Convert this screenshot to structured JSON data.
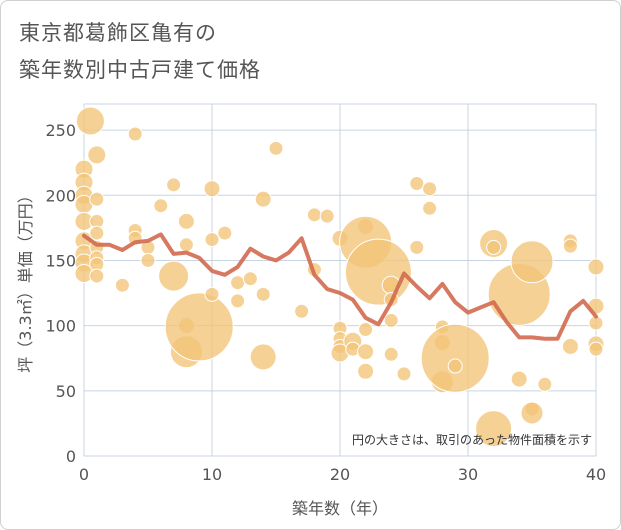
{
  "title_line1": "東京都葛飾区亀有の",
  "title_line2": "築年数別中古戸建て価格",
  "chart_data": {
    "type": "scatter",
    "title": "東京都葛飾区亀有の築年数別中古戸建て価格",
    "xlabel": "築年数（年）",
    "ylabel": "坪（3.3㎡）単価（万円）",
    "xlim": [
      0,
      40
    ],
    "ylim": [
      0,
      270
    ],
    "xticks": [
      0,
      10,
      20,
      30,
      40
    ],
    "yticks": [
      0,
      50,
      100,
      150,
      200,
      250
    ],
    "grid": true,
    "note": "円の大きさは、取引のあった物件面積を示す",
    "colors": {
      "bubble": "#f2c477",
      "line": "#d26a4f",
      "grid": "#c8d4e2"
    },
    "bubbles": [
      {
        "x": 0.5,
        "y": 257,
        "s": 14
      },
      {
        "x": 0,
        "y": 220,
        "s": 9
      },
      {
        "x": 0,
        "y": 210,
        "s": 9
      },
      {
        "x": 0,
        "y": 200,
        "s": 9
      },
      {
        "x": 0,
        "y": 193,
        "s": 9
      },
      {
        "x": 0,
        "y": 180,
        "s": 9
      },
      {
        "x": 0,
        "y": 165,
        "s": 9
      },
      {
        "x": 0,
        "y": 155,
        "s": 9
      },
      {
        "x": 0,
        "y": 148,
        "s": 9
      },
      {
        "x": 0,
        "y": 140,
        "s": 9
      },
      {
        "x": 1,
        "y": 231,
        "s": 9
      },
      {
        "x": 1,
        "y": 197,
        "s": 7
      },
      {
        "x": 1,
        "y": 180,
        "s": 7
      },
      {
        "x": 1,
        "y": 171,
        "s": 7
      },
      {
        "x": 1,
        "y": 160,
        "s": 7
      },
      {
        "x": 1,
        "y": 152,
        "s": 7
      },
      {
        "x": 1,
        "y": 147,
        "s": 7
      },
      {
        "x": 1,
        "y": 138,
        "s": 7
      },
      {
        "x": 3,
        "y": 131,
        "s": 7
      },
      {
        "x": 4,
        "y": 247,
        "s": 7
      },
      {
        "x": 4,
        "y": 173,
        "s": 7
      },
      {
        "x": 4,
        "y": 167,
        "s": 7
      },
      {
        "x": 5,
        "y": 160,
        "s": 7
      },
      {
        "x": 5,
        "y": 150,
        "s": 7
      },
      {
        "x": 6,
        "y": 192,
        "s": 7
      },
      {
        "x": 7,
        "y": 208,
        "s": 7
      },
      {
        "x": 7,
        "y": 138,
        "s": 15
      },
      {
        "x": 8,
        "y": 180,
        "s": 8
      },
      {
        "x": 8,
        "y": 162,
        "s": 7
      },
      {
        "x": 8,
        "y": 100,
        "s": 8
      },
      {
        "x": 8,
        "y": 80,
        "s": 16
      },
      {
        "x": 9,
        "y": 99,
        "s": 34
      },
      {
        "x": 10,
        "y": 205,
        "s": 8
      },
      {
        "x": 10,
        "y": 166,
        "s": 7
      },
      {
        "x": 10,
        "y": 124,
        "s": 7
      },
      {
        "x": 11,
        "y": 171,
        "s": 7
      },
      {
        "x": 12,
        "y": 133,
        "s": 7
      },
      {
        "x": 12,
        "y": 119,
        "s": 7
      },
      {
        "x": 13,
        "y": 136,
        "s": 7
      },
      {
        "x": 14,
        "y": 197,
        "s": 8
      },
      {
        "x": 14,
        "y": 124,
        "s": 7
      },
      {
        "x": 14,
        "y": 76,
        "s": 13
      },
      {
        "x": 15,
        "y": 236,
        "s": 7
      },
      {
        "x": 17,
        "y": 111,
        "s": 7
      },
      {
        "x": 18,
        "y": 185,
        "s": 7
      },
      {
        "x": 18,
        "y": 143,
        "s": 7
      },
      {
        "x": 19,
        "y": 184,
        "s": 7
      },
      {
        "x": 20,
        "y": 167,
        "s": 8
      },
      {
        "x": 20,
        "y": 98,
        "s": 7
      },
      {
        "x": 20,
        "y": 90,
        "s": 7
      },
      {
        "x": 20,
        "y": 84,
        "s": 7
      },
      {
        "x": 20,
        "y": 79,
        "s": 9
      },
      {
        "x": 21,
        "y": 88,
        "s": 9
      },
      {
        "x": 21,
        "y": 82,
        "s": 7
      },
      {
        "x": 22,
        "y": 176,
        "s": 8
      },
      {
        "x": 22,
        "y": 164,
        "s": 26
      },
      {
        "x": 22,
        "y": 97,
        "s": 7
      },
      {
        "x": 22,
        "y": 80,
        "s": 8
      },
      {
        "x": 22,
        "y": 65,
        "s": 8
      },
      {
        "x": 23,
        "y": 141,
        "s": 33
      },
      {
        "x": 24,
        "y": 131,
        "s": 9
      },
      {
        "x": 24,
        "y": 120,
        "s": 7
      },
      {
        "x": 24,
        "y": 104,
        "s": 7
      },
      {
        "x": 24,
        "y": 78,
        "s": 7
      },
      {
        "x": 25,
        "y": 63,
        "s": 7
      },
      {
        "x": 26,
        "y": 160,
        "s": 7
      },
      {
        "x": 26,
        "y": 209,
        "s": 7
      },
      {
        "x": 27,
        "y": 205,
        "s": 7
      },
      {
        "x": 27,
        "y": 190,
        "s": 7
      },
      {
        "x": 28,
        "y": 99,
        "s": 7
      },
      {
        "x": 28,
        "y": 87,
        "s": 8
      },
      {
        "x": 28,
        "y": 57,
        "s": 11
      },
      {
        "x": 29,
        "y": 75,
        "s": 34
      },
      {
        "x": 29,
        "y": 69,
        "s": 7
      },
      {
        "x": 32,
        "y": 163,
        "s": 14
      },
      {
        "x": 32,
        "y": 160,
        "s": 7
      },
      {
        "x": 32,
        "y": 21,
        "s": 18
      },
      {
        "x": 34,
        "y": 124,
        "s": 31
      },
      {
        "x": 34,
        "y": 59,
        "s": 8
      },
      {
        "x": 35,
        "y": 149,
        "s": 21
      },
      {
        "x": 35,
        "y": 36,
        "s": 7
      },
      {
        "x": 35,
        "y": 33,
        "s": 11
      },
      {
        "x": 36,
        "y": 55,
        "s": 7
      },
      {
        "x": 38,
        "y": 165,
        "s": 7
      },
      {
        "x": 38,
        "y": 161,
        "s": 7
      },
      {
        "x": 38,
        "y": 84,
        "s": 8
      },
      {
        "x": 40,
        "y": 145,
        "s": 8
      },
      {
        "x": 40,
        "y": 115,
        "s": 8
      },
      {
        "x": 40,
        "y": 102,
        "s": 7
      },
      {
        "x": 40,
        "y": 86,
        "s": 8
      },
      {
        "x": 40,
        "y": 82,
        "s": 7
      }
    ],
    "series": [
      {
        "type": "line",
        "x": [
          0,
          1,
          2,
          3,
          4,
          5,
          6,
          7,
          8,
          9,
          10,
          11,
          12,
          13,
          14,
          15,
          16,
          17,
          18,
          19,
          20,
          21,
          22,
          23,
          24,
          25,
          26,
          27,
          28,
          29,
          30,
          31,
          32,
          33,
          34,
          35,
          36,
          37,
          38,
          39,
          40
        ],
        "y": [
          169,
          162,
          162,
          158,
          164,
          165,
          170,
          155,
          156,
          152,
          142,
          139,
          145,
          159,
          153,
          150,
          156,
          167,
          139,
          128,
          125,
          120,
          106,
          101,
          118,
          140,
          130,
          121,
          132,
          118,
          110,
          114,
          118,
          103,
          91,
          91,
          90,
          90,
          111,
          119,
          107
        ]
      }
    ]
  }
}
